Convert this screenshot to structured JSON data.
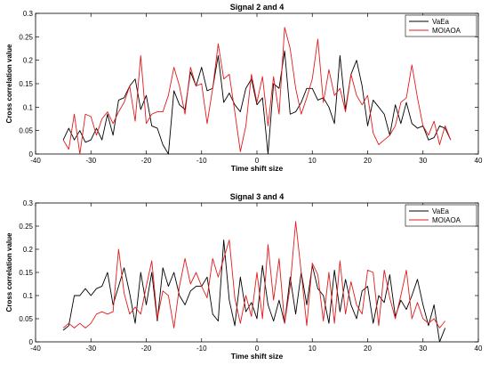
{
  "chart_data": [
    {
      "type": "line",
      "title": "Signal 2 and 4",
      "xlabel": "Time shift size",
      "ylabel": "Cross correlation value",
      "xlim": [
        -40,
        40
      ],
      "ylim": [
        0,
        0.3
      ],
      "xticks": [
        -40,
        -30,
        -20,
        -10,
        0,
        10,
        20,
        30,
        40
      ],
      "yticks": [
        0,
        0.05,
        0.1,
        0.15,
        0.2,
        0.25,
        0.3
      ],
      "xtick_labels": [
        "-40",
        "-30",
        "-20",
        "-10",
        "0",
        "10",
        "20",
        "30",
        "40"
      ],
      "ytick_labels": [
        "0",
        "0.05",
        "0.1",
        "0.15",
        "0.2",
        "0.25",
        "0.3"
      ],
      "legend_position": "top-right",
      "x": [
        -35,
        -34,
        -33,
        -32,
        -31,
        -30,
        -29,
        -28,
        -27,
        -26,
        -25,
        -24,
        -23,
        -22,
        -21,
        -20,
        -19,
        -18,
        -17,
        -16,
        -15,
        -14,
        -13,
        -12,
        -11,
        -10,
        -9,
        -8,
        -7,
        -6,
        -5,
        -4,
        -3,
        -2,
        -1,
        0,
        1,
        2,
        3,
        4,
        5,
        6,
        7,
        8,
        9,
        10,
        11,
        12,
        13,
        14,
        15,
        16,
        17,
        18,
        19,
        20,
        21,
        22,
        23,
        24,
        25,
        26,
        27,
        28,
        29,
        30,
        31,
        32,
        33,
        34,
        35
      ],
      "series": [
        {
          "name": "VaEa",
          "color": "#000000",
          "values": [
            0.03,
            0.055,
            0.03,
            0.05,
            0.025,
            0.03,
            0.055,
            0.03,
            0.085,
            0.04,
            0.115,
            0.12,
            0.145,
            0.16,
            0.095,
            0.125,
            0.06,
            0.055,
            0.02,
            0.0,
            0.135,
            0.105,
            0.095,
            0.175,
            0.145,
            0.185,
            0.135,
            0.14,
            0.21,
            0.11,
            0.13,
            0.105,
            0.09,
            0.14,
            0.16,
            0.105,
            0.12,
            0.0,
            0.15,
            0.14,
            0.22,
            0.085,
            0.09,
            0.11,
            0.14,
            0.14,
            0.115,
            0.12,
            0.1,
            0.065,
            0.21,
            0.095,
            0.17,
            0.2,
            0.145,
            0.06,
            0.115,
            0.1,
            0.085,
            0.04,
            0.105,
            0.065,
            0.11,
            0.065,
            0.055,
            0.06,
            0.03,
            0.035,
            0.06,
            0.055,
            0.03
          ]
        },
        {
          "name": "MOIAOA",
          "color": "#e41a1c",
          "values": [
            0.03,
            0.01,
            0.085,
            0.0,
            0.085,
            0.08,
            0.04,
            0.075,
            0.09,
            0.065,
            0.09,
            0.11,
            0.145,
            0.07,
            0.21,
            0.065,
            0.085,
            0.09,
            0.09,
            0.125,
            0.185,
            0.145,
            0.085,
            0.185,
            0.145,
            0.15,
            0.065,
            0.14,
            0.235,
            0.16,
            0.17,
            0.09,
            0.005,
            0.06,
            0.17,
            0.11,
            0.165,
            0.06,
            0.165,
            0.085,
            0.27,
            0.225,
            0.14,
            0.085,
            0.12,
            0.16,
            0.245,
            0.11,
            0.18,
            0.125,
            0.14,
            0.09,
            0.17,
            0.125,
            0.105,
            0.125,
            0.045,
            0.02,
            0.03,
            0.04,
            0.06,
            0.11,
            0.12,
            0.19,
            0.12,
            0.06,
            0.04,
            0.07,
            0.02,
            0.06,
            0.03
          ]
        }
      ]
    },
    {
      "type": "line",
      "title": "Signal 3 and 4",
      "xlabel": "Time shift size",
      "ylabel": "Cross correlation value",
      "xlim": [
        -40,
        40
      ],
      "ylim": [
        0,
        0.3
      ],
      "xticks": [
        -40,
        -30,
        -20,
        -10,
        0,
        10,
        20,
        30,
        40
      ],
      "yticks": [
        0,
        0.05,
        0.1,
        0.15,
        0.2,
        0.25,
        0.3
      ],
      "xtick_labels": [
        "-40",
        "-30",
        "-20",
        "-10",
        "0",
        "10",
        "20",
        "30",
        "40"
      ],
      "ytick_labels": [
        "0",
        "0.05",
        "0.1",
        "0.15",
        "0.2",
        "0.25",
        "0.3"
      ],
      "legend_position": "top-right",
      "x": [
        -35,
        -34,
        -33,
        -32,
        -31,
        -30,
        -29,
        -28,
        -27,
        -26,
        -25,
        -24,
        -23,
        -22,
        -21,
        -20,
        -19,
        -18,
        -17,
        -16,
        -15,
        -14,
        -13,
        -12,
        -11,
        -10,
        -9,
        -8,
        -7,
        -6,
        -5,
        -4,
        -3,
        -2,
        -1,
        0,
        1,
        2,
        3,
        4,
        5,
        6,
        7,
        8,
        9,
        10,
        11,
        12,
        13,
        14,
        15,
        16,
        17,
        18,
        19,
        20,
        21,
        22,
        23,
        24,
        25,
        26,
        27,
        28,
        29,
        30,
        31,
        32,
        33,
        34
      ],
      "series": [
        {
          "name": "VaEa",
          "color": "#000000",
          "values": [
            0.025,
            0.035,
            0.1,
            0.1,
            0.115,
            0.1,
            0.115,
            0.12,
            0.15,
            0.08,
            0.12,
            0.16,
            0.105,
            0.04,
            0.15,
            0.08,
            0.15,
            0.045,
            0.16,
            0.12,
            0.15,
            0.1,
            0.08,
            0.11,
            0.12,
            0.12,
            0.14,
            0.06,
            0.045,
            0.22,
            0.09,
            0.035,
            0.14,
            0.065,
            0.085,
            0.05,
            0.165,
            0.08,
            0.045,
            0.09,
            0.04,
            0.14,
            0.06,
            0.15,
            0.08,
            0.165,
            0.115,
            0.1,
            0.04,
            0.155,
            0.065,
            0.135,
            0.08,
            0.05,
            0.11,
            0.12,
            0.04,
            0.1,
            0.085,
            0.145,
            0.055,
            0.09,
            0.07,
            0.1,
            0.135,
            0.08,
            0.035,
            0.08,
            0.0,
            0.03
          ]
        },
        {
          "name": "MOIAOA",
          "color": "#e41a1c",
          "values": [
            0.03,
            0.04,
            0.03,
            0.04,
            0.03,
            0.04,
            0.06,
            0.065,
            0.06,
            0.065,
            0.2,
            0.105,
            0.06,
            0.075,
            0.06,
            0.12,
            0.175,
            0.05,
            0.11,
            0.1,
            0.03,
            0.12,
            0.18,
            0.125,
            0.15,
            0.12,
            0.095,
            0.18,
            0.14,
            0.18,
            0.22,
            0.095,
            0.04,
            0.1,
            0.055,
            0.15,
            0.05,
            0.21,
            0.09,
            0.18,
            0.04,
            0.12,
            0.26,
            0.15,
            0.035,
            0.17,
            0.145,
            0.045,
            0.15,
            0.04,
            0.175,
            0.06,
            0.13,
            0.08,
            0.06,
            0.155,
            0.15,
            0.035,
            0.155,
            0.095,
            0.05,
            0.1,
            0.155,
            0.05,
            0.085,
            0.05,
            0.04,
            0.05,
            0.03,
            0.045
          ]
        }
      ]
    }
  ]
}
